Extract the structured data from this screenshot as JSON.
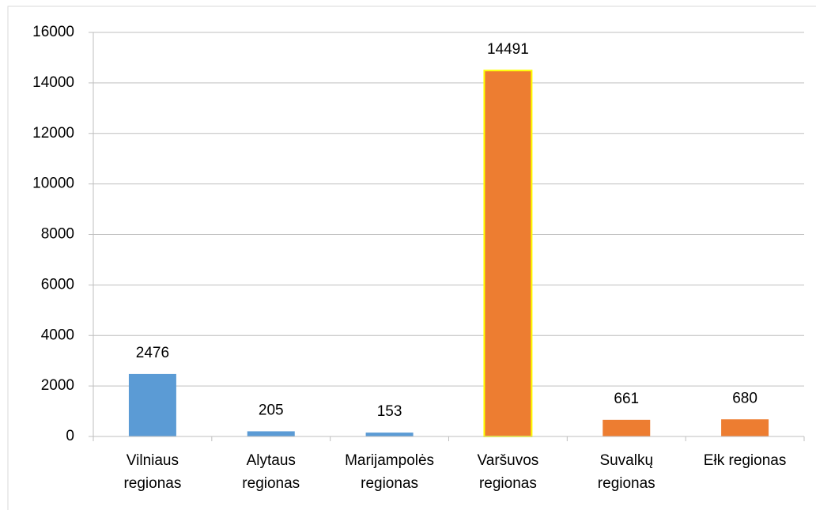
{
  "chart_data": {
    "type": "bar",
    "categories": [
      "Vilniaus regionas",
      "Alytaus regionas",
      "Marijampolės regionas",
      "Varšuvos regionas",
      "Suvalkų regionas",
      "Ełk regionas"
    ],
    "values": [
      2476,
      205,
      153,
      14491,
      661,
      680
    ],
    "colors": [
      "#5b9bd5",
      "#5b9bd5",
      "#5b9bd5",
      "#ed7d31",
      "#ed7d31",
      "#ed7d31"
    ],
    "edge_colors": [
      null,
      null,
      null,
      "#ffff00",
      null,
      null
    ],
    "ylim": [
      0,
      16000
    ],
    "yticks": [
      0,
      2000,
      4000,
      6000,
      8000,
      10000,
      12000,
      14000,
      16000
    ],
    "grid": true
  }
}
